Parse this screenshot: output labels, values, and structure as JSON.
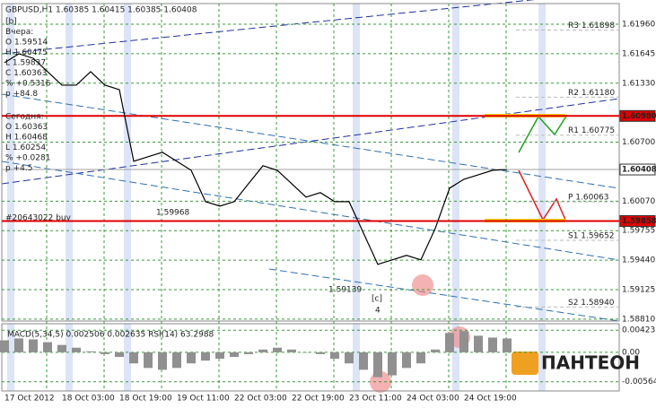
{
  "chart_data": [
    {
      "type": "line",
      "title": "GBPUSD,H1  1.60385 1.60415 1.60385 1.60408",
      "color": "#000000",
      "categories": [
        "17 Oct 2012",
        null,
        null,
        null,
        "18 Oct 03:00",
        null,
        null,
        null,
        "18 Oct 19:00",
        null,
        null,
        null,
        "19 Oct 11:00",
        null,
        null,
        null,
        "22 Oct 03:00",
        null,
        null,
        null,
        "22 Oct 19:00",
        null,
        null,
        null,
        "23 Oct 11:00",
        null,
        null,
        null,
        "24 Oct 03:00",
        null,
        null,
        null,
        "24 Oct 19:00",
        null,
        null,
        null
      ],
      "values": [
        1.61549,
        1.61644,
        1.61596,
        1.61453,
        1.61309,
        1.61309,
        1.61453,
        1.61309,
        1.61261,
        1.60496,
        1.60544,
        1.60592,
        1.60496,
        1.604,
        1.60065,
        1.60017,
        1.60065,
        1.60257,
        1.60448,
        1.604,
        1.60257,
        1.60113,
        1.60161,
        1.60065,
        1.60065,
        1.5973,
        1.59395,
        1.59443,
        1.59491,
        1.59443,
        1.59778,
        1.60209,
        1.60304,
        1.60352,
        1.604,
        1.60408
      ],
      "ylim": [
        1.5879,
        1.6218
      ],
      "yticks": [
        {
          "value": 1.6196,
          "label": "1.61960"
        },
        {
          "value": 1.61645,
          "label": "1.61645"
        },
        {
          "value": 1.6133,
          "label": "1.61330"
        },
        {
          "value": 1.607,
          "label": "1.60700"
        },
        {
          "value": 1.6007,
          "label": "1.60070"
        },
        {
          "value": 1.59755,
          "label": "1.59755"
        },
        {
          "value": 1.5944,
          "label": "1.59440"
        },
        {
          "value": 1.59125,
          "label": "1.59125"
        },
        {
          "value": 1.5881,
          "label": "1.58810"
        }
      ],
      "levels": [
        {
          "value": 1.6098,
          "label": "1.60980",
          "color": "#e00000"
        },
        {
          "value": 1.59858,
          "label": "1.59858",
          "color": "#e00000"
        },
        {
          "value": 1.60408,
          "label": "1.60408",
          "color": "#a0a0a0"
        }
      ],
      "pivots": [
        {
          "value": 1.61898,
          "label": "R3 1.61898"
        },
        {
          "value": 1.6118,
          "label": "R2 1.61180"
        },
        {
          "value": 1.60775,
          "label": "R1 1.60775"
        },
        {
          "value": 1.60063,
          "label": "P 1.60063"
        },
        {
          "value": 1.59652,
          "label": "S1 1.59652"
        },
        {
          "value": 1.5894,
          "label": "S2 1.58940"
        }
      ],
      "info": [
        "[b]",
        "Вчера:",
        "O 1.59514",
        "H 1.60475",
        "L 1.59837",
        "C 1.60363",
        "% +0.5316",
        "p +84.8",
        "Сегодня:",
        "O 1.60363",
        "H 1.60468",
        "L 1.60254",
        "% +0.0281",
        "p +4.5"
      ],
      "annotations": [
        "1.59968",
        "1.59139",
        "[c]",
        "4",
        "#20643022 buy"
      ],
      "logo": "ПАНТЕОН"
    },
    {
      "type": "bar",
      "title": "MACD(5,34,5) 0.002506 0.002635  RSI(14) 63.2988",
      "color": "#909090",
      "values": [
        0.00229,
        0.00265,
        0.00247,
        0.00194,
        0.00141,
        0.00088,
        0.00018,
        -0.00035,
        -0.00088,
        -0.00212,
        -0.003,
        -0.00335,
        -0.003,
        -0.00212,
        -0.00159,
        -0.00123,
        -0.00088,
        -0.00035,
        0.00053,
        0.00088,
        0.00053,
        0,
        -0.00035,
        -0.00123,
        -0.00212,
        -0.00335,
        -0.00476,
        -0.00441,
        -0.003,
        -0.00212,
        0.00053,
        0.0037,
        0.00406,
        0.00317,
        0.00282,
        0.00265
      ],
      "ylim": [
        -0.0074,
        0.00547
      ],
      "yticks": [
        {
          "value": 0.004232,
          "label": "0.004232"
        },
        {
          "value": 0,
          "label": "0.00"
        },
        {
          "value": -0.00564,
          "label": "-0.00564"
        }
      ]
    }
  ]
}
